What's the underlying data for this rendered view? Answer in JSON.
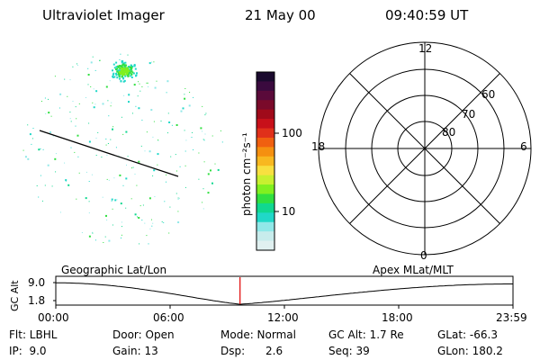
{
  "header": {
    "instrument": "Ultraviolet Imager",
    "date": "21 May 00",
    "time": "09:40:59 UT"
  },
  "colorbar": {
    "unit_label": "photon cm⁻²s⁻¹",
    "tick_100": "100",
    "tick_10": "10",
    "colors": [
      "#1a0a2e",
      "#3a0a3e",
      "#5a0a3a",
      "#7a0a2a",
      "#a00a1a",
      "#c8101a",
      "#e0301a",
      "#f06010",
      "#f59010",
      "#f8b820",
      "#f8e040",
      "#c8f030",
      "#80f020",
      "#30e040",
      "#10d890",
      "#20d8c8",
      "#90e8e8",
      "#c8ecec",
      "#e0f0f0"
    ]
  },
  "polar_plot": {
    "mlt_labels": {
      "top": "12",
      "right": "6",
      "bottom": "0",
      "left": "18"
    },
    "lat_labels": [
      "60",
      "70",
      "80"
    ]
  },
  "timeline": {
    "y_axis_label": "GC Alt",
    "y_ticks": [
      "9.0",
      "1.8"
    ],
    "left_label": "Geographic Lat/Lon",
    "right_label": "Apex MLat/MLT",
    "x_ticks": [
      "00:00",
      "06:00",
      "12:00",
      "18:00",
      "23:59"
    ],
    "current_time_fraction": 0.403,
    "marker_color": "#e00000"
  },
  "info": {
    "row1": {
      "filter": "Flt: LBHL",
      "door": "Door: Open",
      "mode": "Mode: Normal",
      "gc_alt": "GC Alt: 1.7 Re",
      "glat": "GLat: -66.3"
    },
    "row2": {
      "ip": "IP:  9.0",
      "gain": "Gain: 13",
      "dsp": "Dsp:      2.6",
      "seq": "Seq: 39",
      "glon": "GLon: 180.2"
    }
  }
}
